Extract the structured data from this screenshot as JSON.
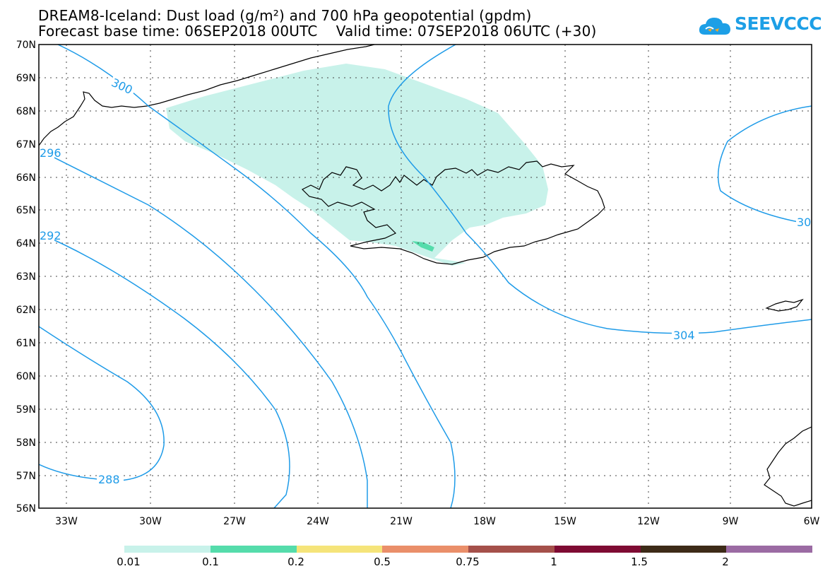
{
  "title": {
    "line1": "DREAM8-Iceland: Dust load (g/m²) and 700 hPa geopotential (gpdm)",
    "line2": "Forecast base time: 06SEP2018 00UTC    Valid time: 07SEP2018 06UTC (+30)"
  },
  "logo": {
    "text": "SEEVCCC",
    "icon": "cloud-logo-icon",
    "color": "#1d9fe6"
  },
  "map": {
    "lon_labels": [
      "33W",
      "30W",
      "27W",
      "24W",
      "21W",
      "18W",
      "15W",
      "12W",
      "9W",
      "6W"
    ],
    "lat_labels": [
      "70N",
      "69N",
      "68N",
      "67N",
      "66N",
      "65N",
      "64N",
      "63N",
      "62N",
      "61N",
      "60N",
      "59N",
      "58N",
      "57N",
      "56N"
    ],
    "contour_color": "#1e9be8",
    "dust_colors": {
      "low": "#c8f2ea",
      "mid": "#55dcab"
    },
    "contour_labels": [
      "300",
      "296",
      "292",
      "288",
      "304",
      "30"
    ]
  },
  "colorbar": {
    "colors": [
      "#c8f2ea",
      "#55dcab",
      "#f5e47a",
      "#ea8f6a",
      "#a5504a",
      "#7e0b33",
      "#3d2b18",
      "#9b6ba3"
    ],
    "labels": [
      "0.01",
      "0.1",
      "0.2",
      "0.5",
      "0.75",
      "1",
      "1.5",
      "2"
    ]
  }
}
